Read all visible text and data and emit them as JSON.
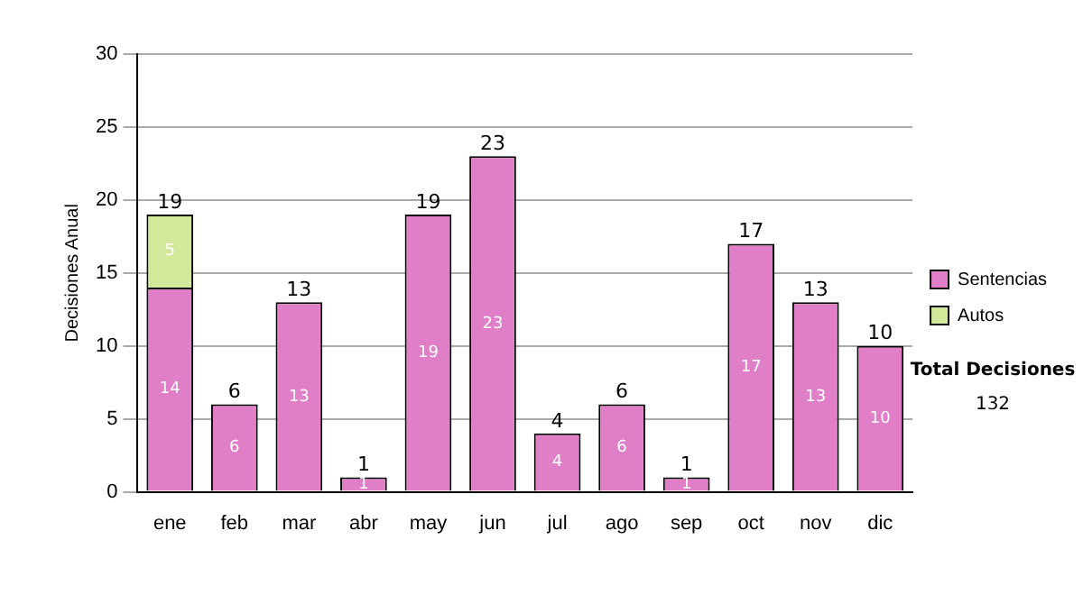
{
  "chart_data": {
    "type": "bar",
    "stacked": true,
    "ylabel": "Decisiones Anual",
    "categories": [
      "ene",
      "feb",
      "mar",
      "abr",
      "may",
      "jun",
      "jul",
      "ago",
      "sep",
      "oct",
      "nov",
      "dic"
    ],
    "series": [
      {
        "name": "Sentencias",
        "color": "#e07fc8",
        "values": [
          14,
          6,
          13,
          1,
          19,
          23,
          4,
          6,
          1,
          17,
          13,
          10
        ]
      },
      {
        "name": "Autos",
        "color": "#d2e89a",
        "values": [
          5,
          null,
          null,
          null,
          null,
          null,
          null,
          null,
          null,
          null,
          null,
          null
        ]
      }
    ],
    "ylim": [
      0,
      30
    ],
    "yticks": [
      0,
      5,
      10,
      15,
      20,
      25,
      30
    ],
    "grid": "y",
    "legend": "right",
    "data_labels": true,
    "totals": [
      "19",
      "6",
      "13",
      "1",
      "19",
      "23",
      "4",
      "6",
      "1",
      "17",
      "13",
      "10"
    ],
    "annotations": [
      "Total Decisiones",
      "132"
    ]
  }
}
